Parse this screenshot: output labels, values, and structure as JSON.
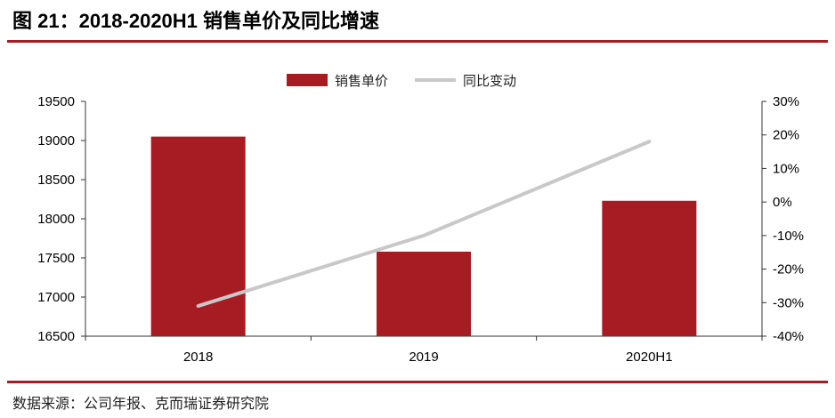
{
  "header": {
    "title": "图 21：2018-2020H1 销售单价及同比增速"
  },
  "footer": {
    "source": "数据来源：公司年报、克而瑞证券研究院"
  },
  "colors": {
    "accent": "#a61c22",
    "bar": "#a61c22",
    "line": "#c8c8c8"
  },
  "chart_data": {
    "type": "bar",
    "categories": [
      "2018",
      "2019",
      "2020H1"
    ],
    "series": [
      {
        "name": "销售单价",
        "type": "bar",
        "axis": "left",
        "values": [
          19050,
          17580,
          18230
        ]
      },
      {
        "name": "同比变动",
        "type": "line",
        "axis": "right",
        "values": [
          -31,
          -10,
          18
        ]
      }
    ],
    "y_left": {
      "min": 16500,
      "max": 19500,
      "ticks": [
        "19500",
        "19000",
        "18500",
        "18000",
        "17500",
        "17000",
        "16500"
      ]
    },
    "y_right": {
      "min": -40,
      "max": 30,
      "ticks": [
        "30%",
        "20%",
        "10%",
        "0%",
        "-10%",
        "-20%",
        "-30%",
        "-40%"
      ]
    },
    "legend_position": "top-center",
    "grid": false
  }
}
